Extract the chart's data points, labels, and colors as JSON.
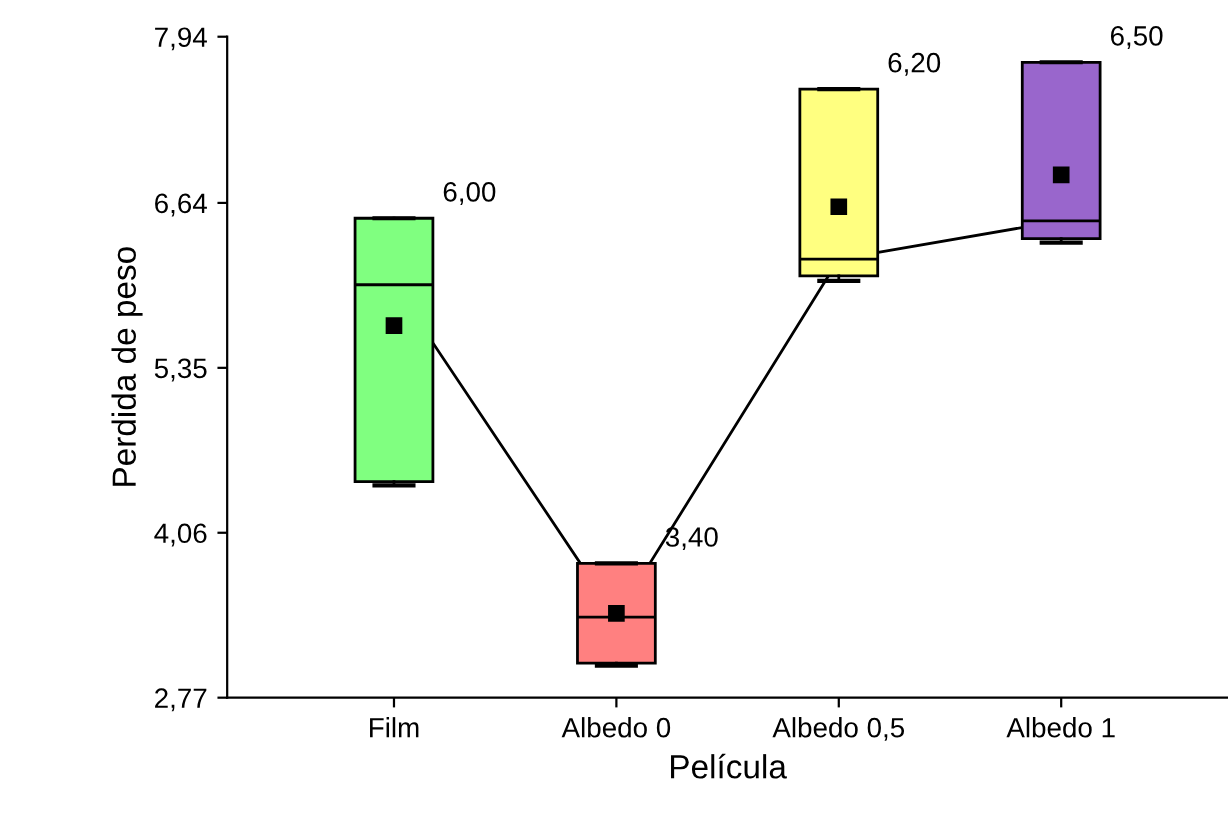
{
  "chart_data": {
    "type": "box",
    "xlabel": "Película",
    "ylabel": "Perdida de peso",
    "categories": [
      "Film",
      "Albedo 0",
      "Albedo 0,5",
      "Albedo 1"
    ],
    "boxes": [
      {
        "low": 4.43,
        "q1": 4.46,
        "median": 6.0,
        "q3": 6.52,
        "high": 6.52,
        "mean": 5.68
      },
      {
        "low": 3.02,
        "q1": 3.04,
        "median": 3.4,
        "q3": 3.82,
        "high": 3.82,
        "mean": 3.43
      },
      {
        "low": 6.03,
        "q1": 6.07,
        "median": 6.2,
        "q3": 7.53,
        "high": 7.53,
        "mean": 6.61
      },
      {
        "low": 6.33,
        "q1": 6.36,
        "median": 6.5,
        "q3": 7.74,
        "high": 7.74,
        "mean": 6.86
      }
    ],
    "colors": [
      "#80ff80",
      "#ff8080",
      "#ffff80",
      "#9966cc"
    ],
    "value_labels": [
      "6,00",
      "3,40",
      "6,20",
      "6,50"
    ],
    "series": [
      {
        "type": "line",
        "color": "#000000",
        "values": [
          6.0,
          3.4,
          6.2,
          6.5
        ]
      }
    ],
    "ylim": [
      2.77,
      7.94
    ],
    "yticks": [
      {
        "value": 2.77,
        "label": "2,77"
      },
      {
        "value": 4.06,
        "label": "4,06"
      },
      {
        "value": 5.35,
        "label": "5,35"
      },
      {
        "value": 6.64,
        "label": "6,64"
      },
      {
        "value": 7.94,
        "label": "7,94"
      }
    ],
    "grid": false,
    "legend": false
  }
}
